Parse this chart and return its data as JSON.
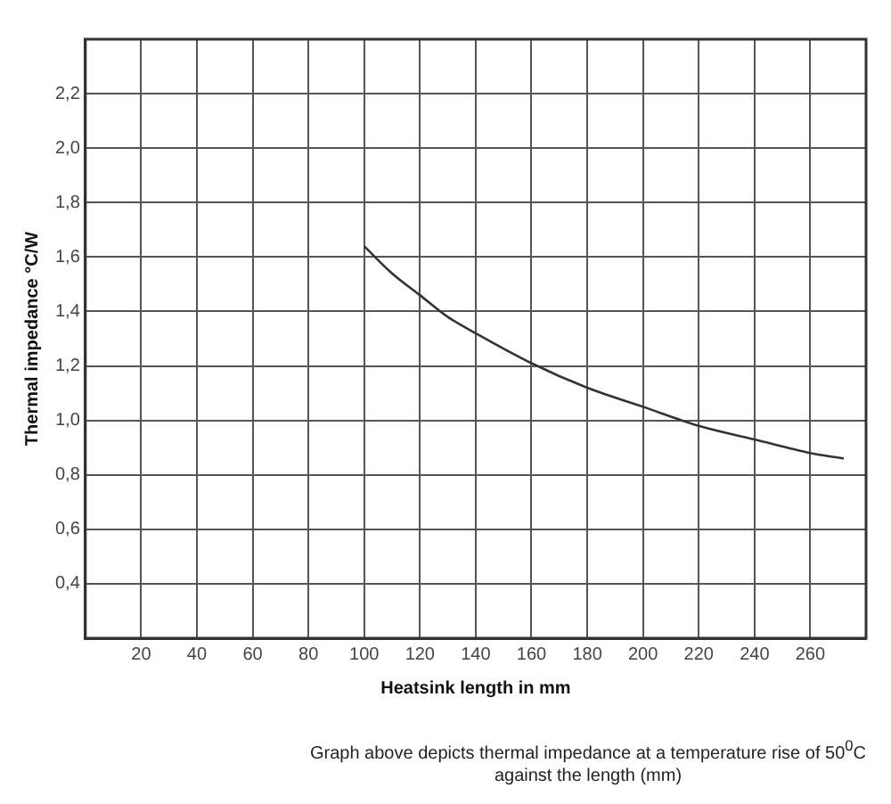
{
  "chart_data": {
    "type": "line",
    "xlabel": "Heatsink length in mm",
    "ylabel": "Thermal impedance °C/W",
    "annotations": [
      "Graph above depicts thermal impedance at a temperature rise of 50$^{0}$C against the length (mm)"
    ],
    "x": [
      100,
      110,
      120,
      130,
      140,
      160,
      180,
      200,
      220,
      240,
      260,
      272
    ],
    "series": [
      {
        "color": "#333333",
        "values": [
          1.64,
          1.54,
          1.46,
          1.38,
          1.32,
          1.21,
          1.12,
          1.05,
          0.98,
          0.93,
          0.88,
          0.86
        ]
      }
    ],
    "xlim": [
      0,
      280
    ],
    "xticks": [
      20,
      40,
      60,
      80,
      100,
      120,
      140,
      160,
      180,
      200,
      220,
      240,
      260
    ],
    "ylim": [
      0.2,
      2.4
    ],
    "yticks": [
      {
        "value": 0.4,
        "label": "0,4"
      },
      {
        "value": 0.6,
        "label": "0,6"
      },
      {
        "value": 0.8,
        "label": "0,8"
      },
      {
        "value": 1.0,
        "label": "1,0"
      },
      {
        "value": 1.2,
        "label": "1,2"
      },
      {
        "value": 1.4,
        "label": "1,4"
      },
      {
        "value": 1.6,
        "label": "1,6"
      },
      {
        "value": 1.8,
        "label": "1,8"
      },
      {
        "value": 2.0,
        "label": "2,0"
      },
      {
        "value": 2.2,
        "label": "2,2"
      }
    ],
    "grid": true,
    "legend": false,
    "marker": "none",
    "line_style": "solid"
  }
}
